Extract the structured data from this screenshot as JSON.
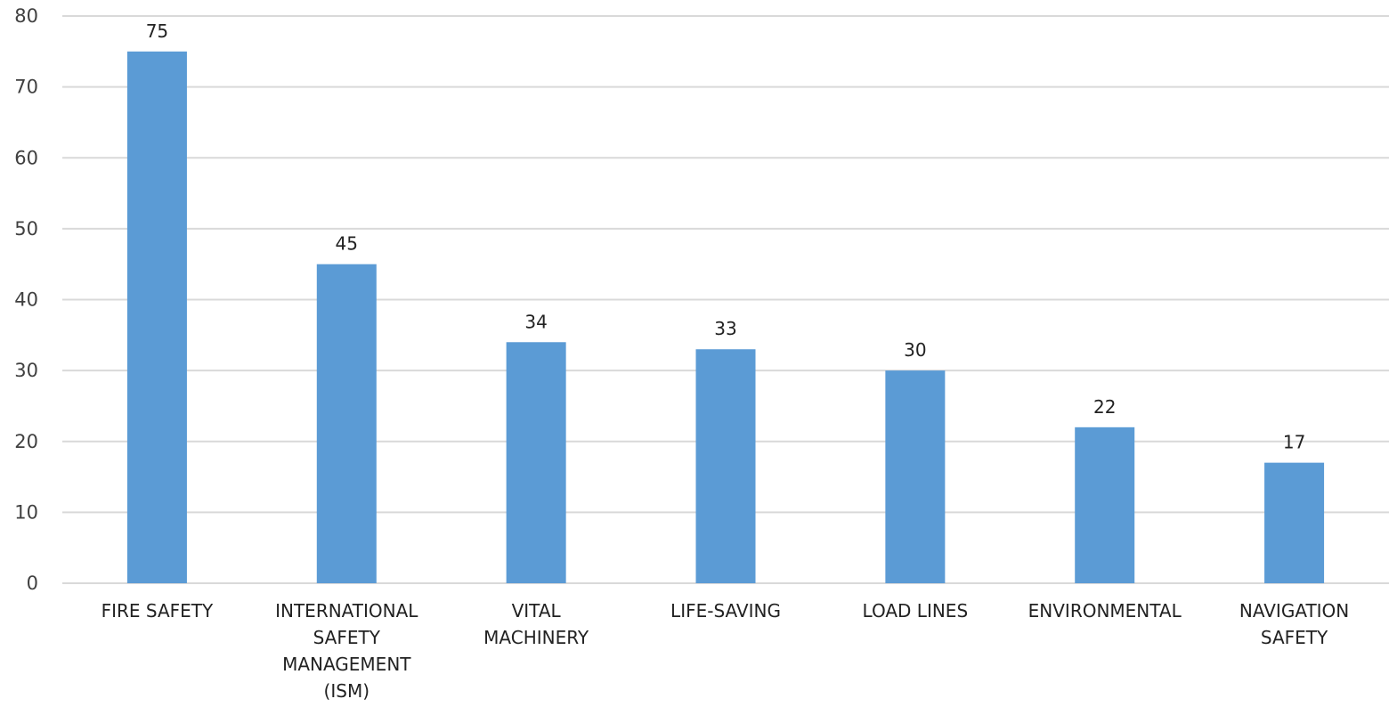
{
  "chart_data": {
    "type": "bar",
    "categories": [
      [
        "FIRE SAFETY"
      ],
      [
        "INTERNATIONAL",
        "SAFETY",
        "MANAGEMENT",
        "(ISM)"
      ],
      [
        "VITAL",
        "MACHINERY"
      ],
      [
        "LIFE-SAVING"
      ],
      [
        "LOAD LINES"
      ],
      [
        "ENVIRONMENTAL"
      ],
      [
        "NAVIGATION",
        "SAFETY"
      ]
    ],
    "values": [
      75,
      45,
      34,
      33,
      30,
      22,
      17
    ],
    "data_labels": [
      "75",
      "45",
      "34",
      "33",
      "30",
      "22",
      "17"
    ],
    "ylim": [
      0,
      80
    ],
    "yticks": [
      0,
      10,
      20,
      30,
      40,
      50,
      60,
      70,
      80
    ],
    "grid": true,
    "bar_color": "#5b9bd5",
    "grid_color": "#d9d9d9",
    "title": "",
    "xlabel": "",
    "ylabel": ""
  }
}
